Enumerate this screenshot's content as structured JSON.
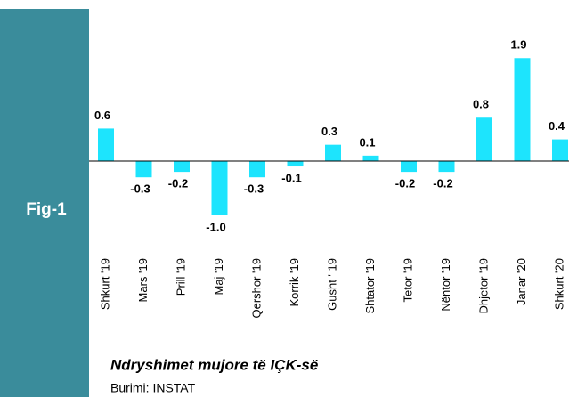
{
  "chart_data": {
    "type": "bar",
    "figure_label": "Fig-1",
    "title": "Ndryshimet mujore të IÇK-së",
    "source": "Burimi: INSTAT",
    "categories": [
      "Shkurt '19",
      "Mars '19",
      "Prill '19",
      "Maj '19",
      "Qershor '19",
      "Korrik '19",
      "Gusht ' 19",
      "Shtator '19",
      "Tetor '19",
      "Nëntor '19",
      "Dhjetor '19",
      "Janar '20",
      "Shkurt '20"
    ],
    "values": [
      0.6,
      -0.3,
      -0.2,
      -1.0,
      -0.3,
      -0.1,
      0.3,
      0.1,
      -0.2,
      -0.2,
      0.8,
      1.9,
      0.4
    ],
    "value_labels": [
      "0.6",
      "-0.3",
      "-0.2",
      "-1.0",
      "-0.3",
      "-0.1",
      "0.3",
      "0.1",
      "-0.2",
      "-0.2",
      "0.8",
      "1.9",
      "0.4"
    ],
    "color": "#1de4fd",
    "panel_color": "#3a8c9b",
    "ylim": [
      -1.2,
      2.2
    ]
  }
}
